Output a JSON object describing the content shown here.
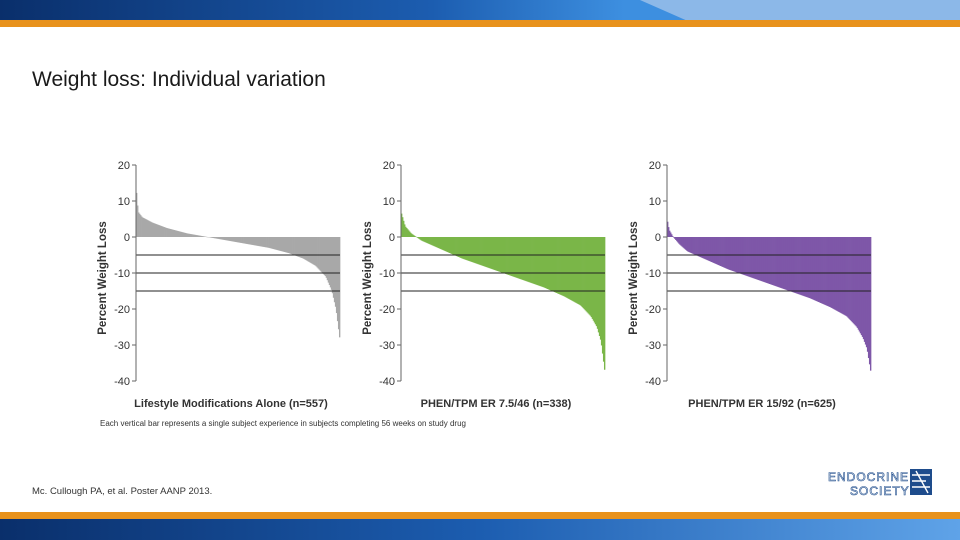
{
  "slide": {
    "title": "Weight loss: Individual variation",
    "citation": "Mc. Cullough PA, et al. Poster AANP 2013.",
    "footnote": "Each vertical bar represents a single subject experience in subjects completing 56 weeks on study drug",
    "logo": {
      "line1": "ENDOCRINE",
      "line2": "SOCIETY"
    },
    "colors": {
      "navy": "#0a2f6b",
      "blue": "#2f7fd0",
      "light_blue": "#8cb8e8",
      "orange": "#e8921c"
    }
  },
  "chart_data": [
    {
      "type": "bar",
      "title": "Lifestyle Modifications Alone (n=557)",
      "ylabel": "Percent Weight Loss",
      "ylim": [
        -40,
        20
      ],
      "yticks": [
        20,
        10,
        0,
        -10,
        -20,
        -30,
        -40
      ],
      "reference_lines": [
        -5,
        -10,
        -15
      ],
      "color": "#a8a8a8",
      "sorted_values_profile": {
        "x": [
          0,
          0.01,
          0.03,
          0.08,
          0.15,
          0.25,
          0.35,
          0.45,
          0.55,
          0.65,
          0.75,
          0.82,
          0.88,
          0.93,
          0.96,
          0.98,
          1.0
        ],
        "y": [
          14,
          7,
          5.5,
          4,
          2.5,
          1,
          0,
          -1,
          -2,
          -3,
          -4.5,
          -6,
          -8,
          -11,
          -15,
          -20,
          -29
        ]
      }
    },
    {
      "type": "bar",
      "title": "PHEN/TPM ER 7.5/46 (n=338)",
      "ylabel": "Percent Weight Loss",
      "ylim": [
        -40,
        20
      ],
      "yticks": [
        20,
        10,
        0,
        -10,
        -20,
        -30,
        -40
      ],
      "reference_lines": [
        -5,
        -10,
        -15
      ],
      "color": "#7ab648",
      "sorted_values_profile": {
        "x": [
          0,
          0.02,
          0.05,
          0.1,
          0.2,
          0.3,
          0.4,
          0.5,
          0.6,
          0.7,
          0.8,
          0.88,
          0.93,
          0.96,
          0.98,
          1.0
        ],
        "y": [
          7,
          3,
          1,
          -1,
          -3.5,
          -6,
          -8,
          -10,
          -12,
          -14,
          -16.5,
          -19,
          -22,
          -25,
          -29,
          -38
        ]
      }
    },
    {
      "type": "bar",
      "title": "PHEN/TPM ER 15/92 (n=625)",
      "ylabel": "Percent Weight Loss",
      "ylim": [
        -40,
        20
      ],
      "yticks": [
        20,
        10,
        0,
        -10,
        -20,
        -30,
        -40
      ],
      "reference_lines": [
        -5,
        -10,
        -15
      ],
      "color": "#7e57a8",
      "sorted_values_profile": {
        "x": [
          0,
          0.01,
          0.03,
          0.06,
          0.1,
          0.2,
          0.3,
          0.4,
          0.5,
          0.6,
          0.7,
          0.8,
          0.88,
          0.93,
          0.96,
          0.98,
          1.0
        ],
        "y": [
          5,
          2,
          0,
          -2,
          -4,
          -6.5,
          -9,
          -11,
          -13,
          -15,
          -17,
          -19.5,
          -22,
          -25,
          -28,
          -31,
          -38
        ]
      }
    }
  ]
}
